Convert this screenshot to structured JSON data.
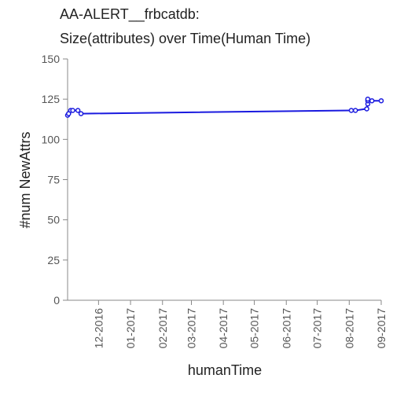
{
  "chart_data": {
    "type": "line",
    "title_lines": [
      "AA-ALERT__frbcatdb:",
      "Size(attributes) over Time(Human Time)"
    ],
    "xlabel": "humanTime",
    "ylabel": "#num NewAttrs",
    "ylim": [
      0,
      150
    ],
    "yticks": [
      0,
      25,
      50,
      75,
      100,
      125,
      150
    ],
    "xlim": [
      "2016-11-01",
      "2017-09-01"
    ],
    "xticks": [
      {
        "date": "2016-12-01",
        "label": "12-2016"
      },
      {
        "date": "2017-01-01",
        "label": "01-2017"
      },
      {
        "date": "2017-02-01",
        "label": "02-2017"
      },
      {
        "date": "2017-03-01",
        "label": "03-2017"
      },
      {
        "date": "2017-04-01",
        "label": "04-2017"
      },
      {
        "date": "2017-05-01",
        "label": "05-2017"
      },
      {
        "date": "2017-06-01",
        "label": "06-2017"
      },
      {
        "date": "2017-07-01",
        "label": "07-2017"
      },
      {
        "date": "2017-08-01",
        "label": "08-2017"
      },
      {
        "date": "2017-09-01",
        "label": "09-2017"
      }
    ],
    "series": [
      {
        "color": "#1a1adf",
        "points": [
          {
            "x": "2016-11-01",
            "y": 115
          },
          {
            "x": "2016-11-02",
            "y": 116
          },
          {
            "x": "2016-11-04",
            "y": 118
          },
          {
            "x": "2016-11-06",
            "y": 118
          },
          {
            "x": "2016-11-11",
            "y": 118
          },
          {
            "x": "2016-11-14",
            "y": 116
          },
          {
            "x": "2017-08-03",
            "y": 118
          },
          {
            "x": "2017-08-07",
            "y": 118
          },
          {
            "x": "2017-08-18",
            "y": 119
          },
          {
            "x": "2017-08-19",
            "y": 122
          },
          {
            "x": "2017-08-19",
            "y": 124
          },
          {
            "x": "2017-08-19",
            "y": 125
          },
          {
            "x": "2017-08-23",
            "y": 124
          },
          {
            "x": "2017-09-01",
            "y": 124
          }
        ]
      }
    ]
  }
}
